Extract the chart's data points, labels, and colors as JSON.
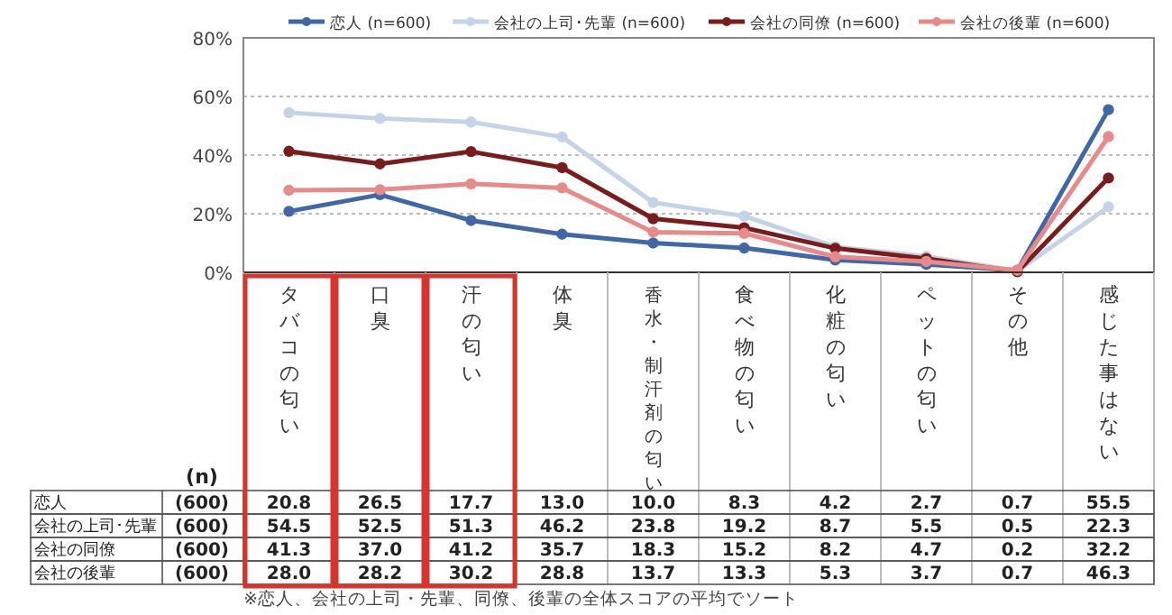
{
  "chart_data": {
    "type": "line",
    "categories": [
      "タバコの匂い",
      "口臭",
      "汗の匂い",
      "体臭",
      "香水・制汗剤の匂い",
      "食べ物の匂い",
      "化粧の匂い",
      "ペットの匂い",
      "その他",
      "感じた事はない"
    ],
    "series": [
      {
        "name": "恋人 (n=600)",
        "color": "#4068a8",
        "values": [
          20.8,
          26.5,
          17.7,
          13.0,
          10.0,
          8.3,
          4.2,
          2.7,
          0.7,
          55.5
        ],
        "value_labels": [
          "20.8",
          "26.5",
          "17.7",
          "13.0",
          "10.0",
          "8.3",
          "4.2",
          "2.7",
          "0.7",
          "55.5"
        ]
      },
      {
        "name": "会社の上司･先輩 (n=600)",
        "color": "#c5d3e8",
        "values": [
          54.5,
          52.5,
          51.3,
          46.2,
          23.8,
          19.2,
          8.7,
          5.5,
          0.5,
          22.3
        ],
        "value_labels": [
          "54.5",
          "52.5",
          "51.3",
          "46.2",
          "23.8",
          "19.2",
          "8.7",
          "5.5",
          "0.5",
          "22.3"
        ]
      },
      {
        "name": "会社の同僚 (n=600)",
        "color": "#7b1c1c",
        "values": [
          41.3,
          37.0,
          41.2,
          35.7,
          18.3,
          15.2,
          8.2,
          4.7,
          0.2,
          32.2
        ],
        "value_labels": [
          "41.3",
          "37.0",
          "41.2",
          "35.7",
          "18.3",
          "15.2",
          "8.2",
          "4.7",
          "0.2",
          "32.2"
        ]
      },
      {
        "name": "会社の後輩 (n=600)",
        "color": "#e88a8a",
        "values": [
          28.0,
          28.2,
          30.2,
          28.8,
          13.7,
          13.3,
          5.3,
          3.7,
          0.7,
          46.3
        ],
        "value_labels": [
          "28.0",
          "28.2",
          "30.2",
          "28.8",
          "13.7",
          "13.3",
          "5.3",
          "3.7",
          "0.7",
          "46.3"
        ]
      }
    ],
    "ylim": [
      0,
      80
    ],
    "yticks": [
      {
        "value": 0,
        "label": "0%"
      },
      {
        "value": 20,
        "label": "20%"
      },
      {
        "value": 40,
        "label": "40%"
      },
      {
        "value": 60,
        "label": "60%"
      },
      {
        "value": 80,
        "label": "80%"
      }
    ],
    "grid": "y",
    "legend": "top",
    "marker": "circle",
    "annotations": [
      "(n)",
      "恋人",
      "(600)",
      "会社の上司･先輩",
      "(600)",
      "会社の同僚",
      "(600)",
      "会社の後輩",
      "(600)",
      "※恋人、会社の上司・先輩、同僚、後輩の全体スコアの平均でソート"
    ]
  }
}
